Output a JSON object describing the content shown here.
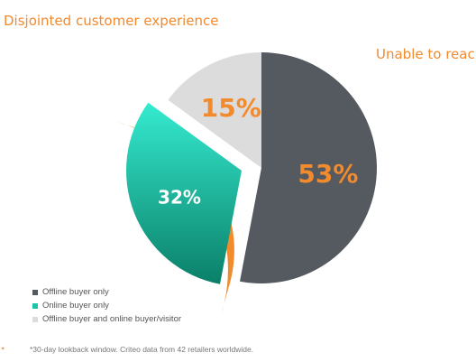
{
  "chart_data": {
    "type": "pie",
    "slices": [
      {
        "label": "Offline buyer only",
        "value": 53,
        "display": "53%",
        "color": "#555960"
      },
      {
        "label": "Online buyer only",
        "value": 32,
        "display": "32%",
        "color": "#1bc5a8"
      },
      {
        "label": "Offline buyer and online buyer/visitor",
        "value": 15,
        "display": "15%",
        "color": "#dcdcdc"
      }
    ],
    "annotations": [
      {
        "text": "Disjointed customer experience",
        "color": "#f28a2e"
      },
      {
        "text": "Unable to reach",
        "color": "#f28a2e"
      }
    ],
    "legend_placement": "bottom-left"
  },
  "footnote": "*30-day lookback window. Criteo data from 42 retailers worldwide.",
  "colors": {
    "accent": "#f28a2e"
  }
}
